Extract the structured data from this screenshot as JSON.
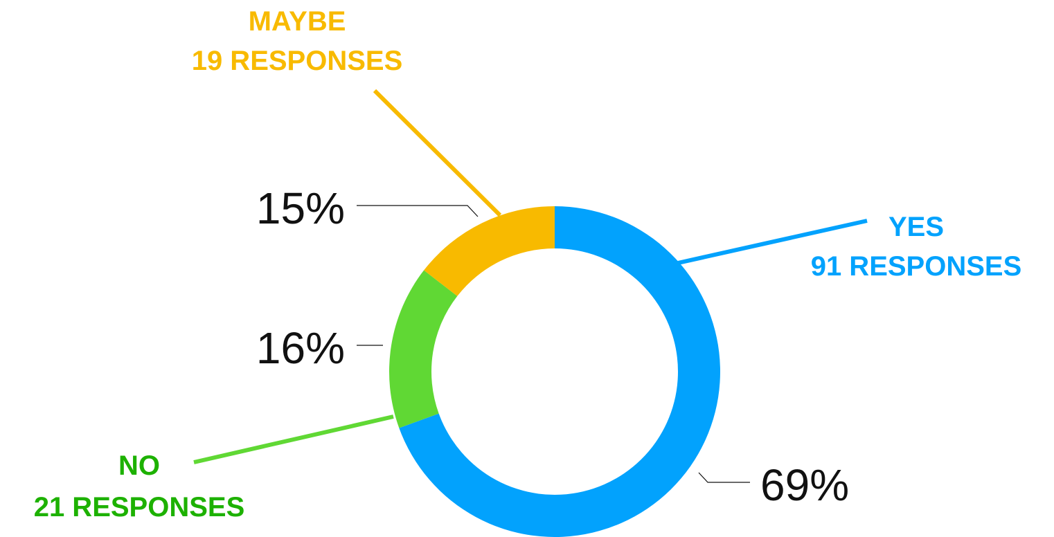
{
  "chart_data": {
    "type": "pie",
    "variant": "donut",
    "start_angle": "12 o'clock, clockwise",
    "slices": [
      {
        "label": "YES",
        "responses": 91,
        "responses_text": "91 RESPONSES",
        "percent": 69,
        "percent_text": "69%",
        "color": "#02A2FD",
        "label_color": "#02A2FD",
        "leader_color": "#02A2FD"
      },
      {
        "label": "NO",
        "responses": 21,
        "responses_text": "21 RESPONSES",
        "percent": 16,
        "percent_text": "16%",
        "color": "#60D834",
        "label_color": "#1DB100",
        "leader_color": "#60D834"
      },
      {
        "label": "MAYBE",
        "responses": 19,
        "responses_text": "19 RESPONSES",
        "percent": 15,
        "percent_text": "15%",
        "color": "#F8BA00",
        "label_color": "#F8BA00",
        "leader_color": "#F8BA00"
      }
    ]
  }
}
